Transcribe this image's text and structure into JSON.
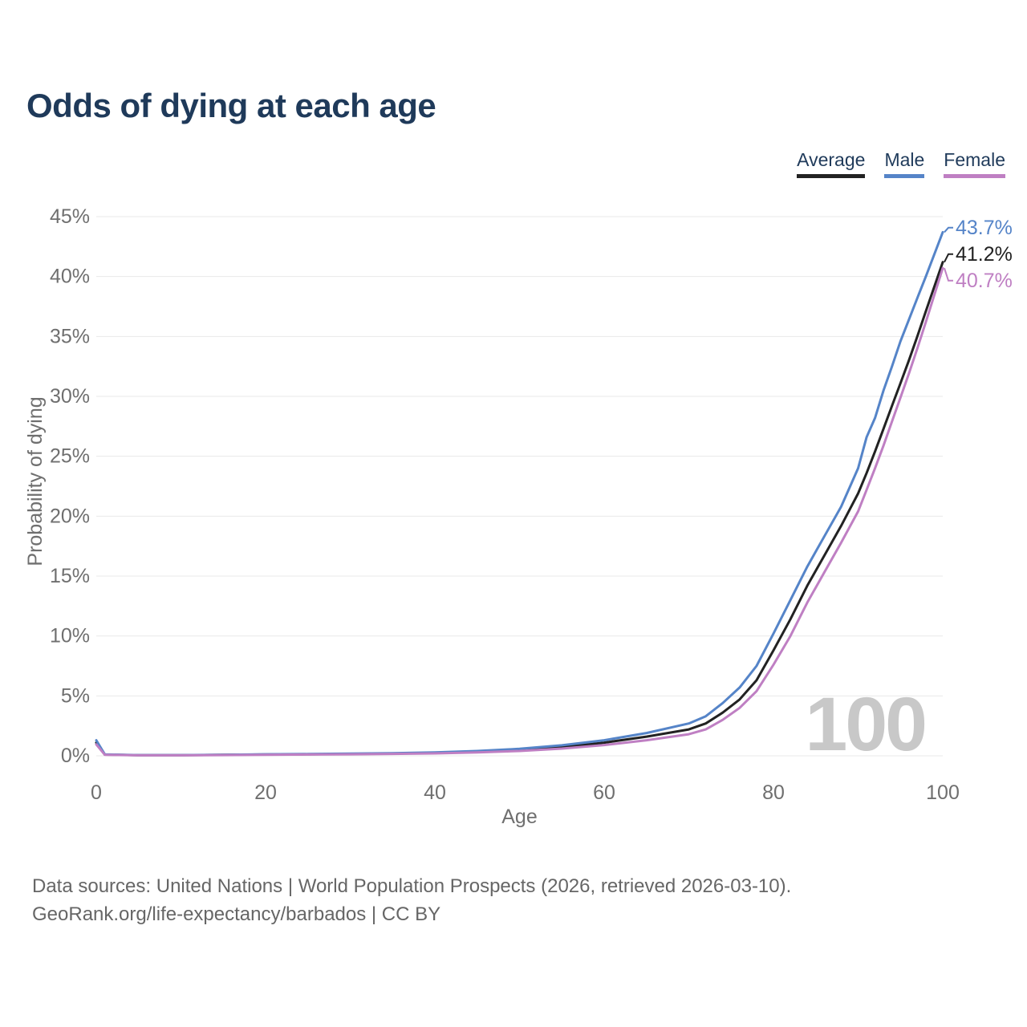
{
  "title": "Odds of dying at each age",
  "legend": [
    {
      "label": "Average",
      "color": "#222222"
    },
    {
      "label": "Male",
      "color": "#5584c8"
    },
    {
      "label": "Female",
      "color": "#bf7fc3"
    }
  ],
  "watermark": "100",
  "footer": {
    "line1": "Data sources: United Nations | World Population Prospects (2026, retrieved 2026-03-10).",
    "line2": "GeoRank.org/life-expectancy/barbados | CC BY"
  },
  "chart_data": {
    "type": "line",
    "title": "Odds of dying at each age",
    "xlabel": "Age",
    "ylabel": "Probability of dying",
    "xlim": [
      0,
      100
    ],
    "ylim": [
      0,
      45
    ],
    "grid": "horizontal",
    "legend_position": "top-right",
    "y_ticks": [
      "0%",
      "5%",
      "10%",
      "15%",
      "20%",
      "25%",
      "30%",
      "35%",
      "40%",
      "45%"
    ],
    "x_ticks": [
      "0",
      "20",
      "40",
      "60",
      "80",
      "100"
    ],
    "x": [
      0,
      1,
      5,
      10,
      15,
      20,
      25,
      30,
      35,
      40,
      45,
      50,
      55,
      60,
      65,
      70,
      72,
      74,
      76,
      78,
      80,
      82,
      84,
      86,
      88,
      90,
      91,
      92,
      93,
      94,
      95,
      96,
      97,
      98,
      100
    ],
    "series": [
      {
        "name": "Average",
        "color": "#222222",
        "end_label": "41.2%",
        "values": [
          1.1,
          0.1,
          0.05,
          0.05,
          0.08,
          0.11,
          0.13,
          0.15,
          0.19,
          0.24,
          0.34,
          0.48,
          0.73,
          1.1,
          1.6,
          2.2,
          2.7,
          3.6,
          4.7,
          6.3,
          8.8,
          11.4,
          14.2,
          16.7,
          19.2,
          21.9,
          23.6,
          25.4,
          27.3,
          29.2,
          31.1,
          33.0,
          35.0,
          37.1,
          41.2
        ]
      },
      {
        "name": "Male",
        "color": "#5584c8",
        "end_label": "43.7%",
        "values": [
          1.3,
          0.12,
          0.06,
          0.06,
          0.09,
          0.13,
          0.15,
          0.18,
          0.22,
          0.28,
          0.4,
          0.58,
          0.88,
          1.3,
          1.9,
          2.7,
          3.3,
          4.4,
          5.7,
          7.5,
          10.2,
          13.0,
          15.8,
          18.3,
          20.8,
          24.0,
          26.6,
          28.2,
          30.5,
          32.5,
          34.6,
          36.4,
          38.2,
          40.0,
          43.7
        ]
      },
      {
        "name": "Female",
        "color": "#bf7fc3",
        "end_label": "40.7%",
        "values": [
          0.95,
          0.09,
          0.04,
          0.04,
          0.06,
          0.09,
          0.11,
          0.13,
          0.16,
          0.2,
          0.28,
          0.4,
          0.6,
          0.9,
          1.3,
          1.8,
          2.2,
          3.0,
          4.0,
          5.4,
          7.6,
          10.0,
          12.8,
          15.3,
          17.8,
          20.4,
          22.2,
          24.0,
          25.9,
          27.9,
          29.9,
          31.9,
          34.0,
          36.2,
          40.7
        ]
      }
    ]
  }
}
